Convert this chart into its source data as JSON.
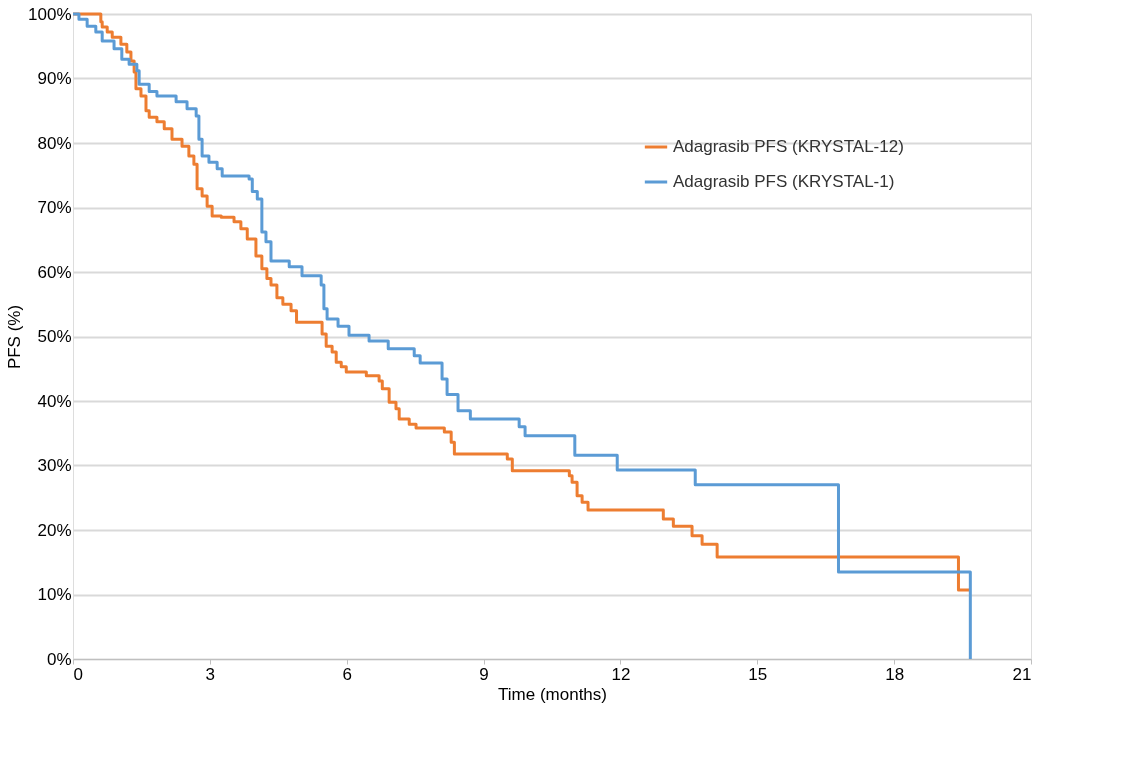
{
  "chart_data": {
    "type": "step",
    "xlabel": "Time (months)",
    "ylabel": "PFS (%)",
    "xlim": [
      0,
      21
    ],
    "xticks": [
      0,
      3,
      6,
      9,
      12,
      15,
      18,
      21
    ],
    "ylim": [
      0,
      100
    ],
    "yticks": [
      {
        "value": 0,
        "label": "0%"
      },
      {
        "value": 10,
        "label": "10%"
      },
      {
        "value": 20,
        "label": "20%"
      },
      {
        "value": 30,
        "label": "30%"
      },
      {
        "value": 40,
        "label": "40%"
      },
      {
        "value": 50,
        "label": "50%"
      },
      {
        "value": 60,
        "label": "60%"
      },
      {
        "value": 70,
        "label": "70%"
      },
      {
        "value": 80,
        "label": "80%"
      },
      {
        "value": 90,
        "label": "90%"
      },
      {
        "value": 100,
        "label": "100%"
      }
    ],
    "grid": "y",
    "legend": "right",
    "marker": "none",
    "line_style": "solid",
    "series": [
      {
        "name": "Adagrasib PFS (KRYSTAL-12)",
        "color": "#ed7d31",
        "x": [
          0,
          0.61,
          0.64,
          0.75,
          0.86,
          1.05,
          1.18,
          1.27,
          1.34,
          1.38,
          1.49,
          1.6,
          1.67,
          1.84,
          2.0,
          2.17,
          2.39,
          2.54,
          2.65,
          2.72,
          2.83,
          2.94,
          3.05,
          3.25,
          3.53,
          3.68,
          3.82,
          4.01,
          4.14,
          4.25,
          4.34,
          4.47,
          4.6,
          4.78,
          4.9,
          5.46,
          5.55,
          5.68,
          5.77,
          5.88,
          5.99,
          6.43,
          6.71,
          6.78,
          6.93,
          7.08,
          7.15,
          7.37,
          7.52,
          8.14,
          8.29,
          8.36,
          9.52,
          9.63,
          10.88,
          10.94,
          11.05,
          11.16,
          11.29,
          12.94,
          13.16,
          13.57,
          13.79,
          14.12,
          19.41,
          19.65
        ],
        "values": [
          100,
          98.8,
          98,
          97.2,
          96.4,
          95.3,
          94.1,
          92.7,
          91,
          88.4,
          87.3,
          85,
          84,
          83.3,
          82.2,
          80.6,
          79.5,
          78,
          76.7,
          72.9,
          71.8,
          70.2,
          68.7,
          68.5,
          67.8,
          66.7,
          65.1,
          62.5,
          60.5,
          59,
          58,
          56,
          55,
          54,
          52.2,
          50.4,
          48.5,
          47.6,
          46,
          45.3,
          44.5,
          43.9,
          43.1,
          41.9,
          39.8,
          38.8,
          37.2,
          36.4,
          35.8,
          35.2,
          33.6,
          31.8,
          31,
          29.2,
          28.4,
          27.4,
          25.3,
          24.3,
          23.1,
          21.7,
          20.6,
          19.1,
          17.8,
          15.8,
          10.7,
          10.7
        ]
      },
      {
        "name": "Adagrasib PFS (KRYSTAL-1)",
        "color": "#5b9bd5",
        "x": [
          0,
          0.13,
          0.31,
          0.5,
          0.64,
          0.9,
          1.07,
          1.23,
          1.4,
          1.45,
          1.67,
          1.84,
          2.26,
          2.5,
          2.7,
          2.76,
          2.83,
          2.98,
          3.16,
          3.27,
          3.86,
          3.93,
          4.04,
          4.14,
          4.23,
          4.34,
          4.74,
          5.02,
          5.44,
          5.5,
          5.57,
          5.81,
          6.05,
          6.49,
          6.91,
          7.48,
          7.61,
          8.09,
          8.2,
          8.44,
          8.71,
          9.78,
          9.91,
          11.0,
          11.93,
          13.64,
          16.78,
          19.67
        ],
        "values": [
          100,
          99.2,
          98.1,
          97.2,
          95.8,
          94.6,
          93,
          92.2,
          91.2,
          89.1,
          88,
          87.3,
          86.4,
          85.3,
          84.2,
          80.6,
          78,
          77,
          76,
          74.9,
          74.4,
          72.5,
          71.3,
          66.2,
          64.7,
          61.7,
          60.8,
          59.4,
          58,
          54.3,
          52.7,
          51.6,
          50.2,
          49.3,
          48.1,
          47,
          45.9,
          43.4,
          41,
          38.5,
          37.2,
          36,
          34.6,
          31.6,
          29.3,
          27,
          13.5,
          0
        ]
      }
    ]
  }
}
